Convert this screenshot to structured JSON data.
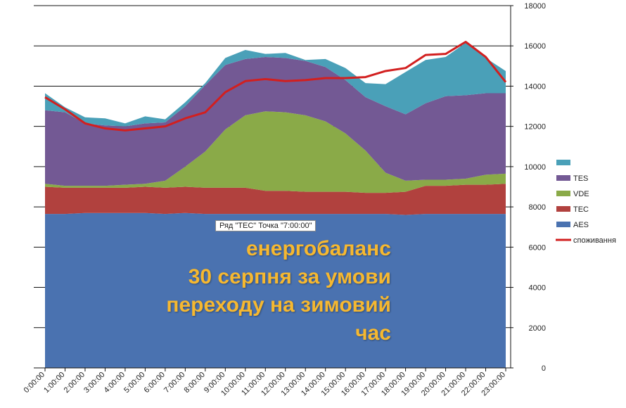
{
  "chart_data": {
    "type": "area",
    "stacked": true,
    "categories": [
      "0:00:00",
      "1:00:00",
      "2:00:00",
      "3:00:00",
      "4:00:00",
      "5:00:00",
      "6:00:00",
      "7:00:00",
      "8:00:00",
      "9:00:00",
      "10:00:00",
      "11:00:00",
      "12:00:00",
      "13:00:00",
      "14:00:00",
      "15:00:00",
      "16:00:00",
      "17:00:00",
      "18:00:00",
      "19:00:00",
      "20:00:00",
      "21:00:00",
      "22:00:00",
      "23:00:00"
    ],
    "ylim": [
      0,
      18000
    ],
    "yticks": [
      0,
      2000,
      4000,
      6000,
      8000,
      10000,
      12000,
      14000,
      16000,
      18000
    ],
    "y_axis_side": "right",
    "grid": true,
    "legend_position": "right",
    "series": [
      {
        "name": "AES",
        "color": "#4a72b0",
        "values": [
          7650,
          7650,
          7700,
          7700,
          7700,
          7700,
          7650,
          7700,
          7650,
          7650,
          7650,
          7650,
          7650,
          7650,
          7650,
          7650,
          7650,
          7650,
          7600,
          7650,
          7650,
          7650,
          7650,
          7650
        ]
      },
      {
        "name": "TEC",
        "color": "#b1413e",
        "values": [
          1350,
          1300,
          1250,
          1250,
          1250,
          1300,
          1300,
          1300,
          1300,
          1300,
          1300,
          1150,
          1150,
          1100,
          1100,
          1100,
          1050,
          1050,
          1150,
          1400,
          1400,
          1450,
          1450,
          1500
        ]
      },
      {
        "name": "VDE",
        "color": "#8aaa48",
        "values": [
          150,
          100,
          100,
          100,
          150,
          150,
          350,
          1000,
          1800,
          2900,
          3600,
          3950,
          3900,
          3800,
          3500,
          2900,
          2100,
          1000,
          550,
          300,
          300,
          300,
          500,
          500
        ]
      },
      {
        "name": "TES",
        "color": "#735994",
        "values": [
          3650,
          3650,
          3100,
          3000,
          2900,
          3000,
          2900,
          3000,
          3300,
          3200,
          2800,
          2700,
          2700,
          2700,
          2700,
          2650,
          2650,
          3300,
          3300,
          3800,
          4150,
          4150,
          4050,
          4000
        ]
      },
      {
        "name": "",
        "color": "#4aa0b8",
        "values": [
          850,
          250,
          300,
          350,
          150,
          350,
          150,
          200,
          100,
          350,
          450,
          150,
          250,
          50,
          400,
          600,
          700,
          1100,
          2100,
          2150,
          1950,
          2600,
          1750,
          1100
        ]
      }
    ],
    "line_series": {
      "name": "споживання",
      "color": "#d21f1f",
      "values": [
        13450,
        12850,
        12150,
        11900,
        11800,
        11900,
        12000,
        12400,
        12700,
        13700,
        14250,
        14350,
        14250,
        14300,
        14400,
        14400,
        14450,
        14750,
        14900,
        15550,
        15600,
        16200,
        15450,
        14200
      ]
    }
  },
  "tooltip": "Ряд \"ТЕС\" Точка \"7:00:00\"",
  "overlay_lines": [
    "енергобаланс",
    "30 серпня за умови",
    "переходу на зимовий",
    "час"
  ]
}
